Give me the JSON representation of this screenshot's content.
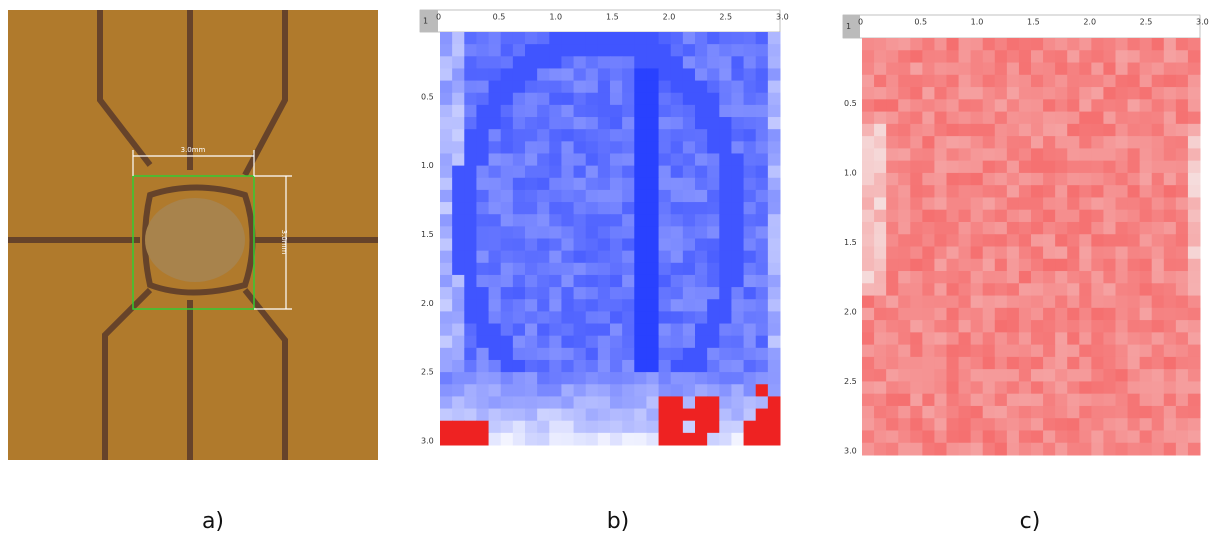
{
  "panels": [
    {
      "label": "a)",
      "scale_labels": [
        "3.0mm",
        "3.0mm"
      ]
    },
    {
      "label": "b)",
      "corner": "1",
      "x_ticks": [
        "0",
        "0.5",
        "1.0",
        "1.5",
        "2.0",
        "2.5",
        "3.0"
      ],
      "y_ticks": [
        "0.5",
        "1.0",
        "1.5",
        "2.0",
        "2.5",
        "3.0"
      ]
    },
    {
      "label": "c)",
      "corner": "1",
      "x_ticks": [
        "0",
        "0.5",
        "1.0",
        "1.5",
        "2.0",
        "2.5",
        "3.0"
      ],
      "y_ticks": [
        "0.5",
        "1.0",
        "1.5",
        "2.0",
        "2.5",
        "3.0"
      ]
    }
  ]
}
